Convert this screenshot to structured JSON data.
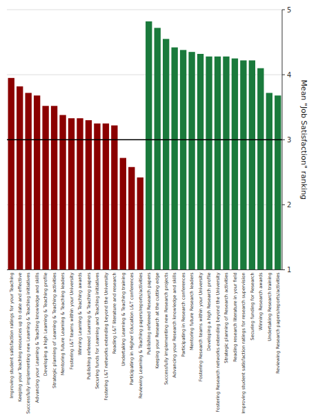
{
  "chart_data": {
    "type": "bar",
    "categories": [
      "Improving student satisfaction ratings for your Teaching",
      "Keeping your Teaching resources up to date and effective",
      "Successfully implementing new Learning & Teaching initiatives",
      "Advancing your Learning & Teaching knowledge and skills",
      "Developing a high Learning & Teaching profile",
      "Strategic planning of Learning & Teaching activities",
      "Mentoring future Learning & Teaching leaders",
      "Fostering L&T teams within your University",
      "Winning Learning & Teaching awards",
      "Publishing refereed Learning & Teaching papers",
      "Securing funds for Learning and Teaching initiatives",
      "Fostering L&T networks extending beyond the University",
      "Reading L&T literature and research",
      "Undertaking Learning & Teaching training",
      "Participating in Higher Education L&T conferences",
      "Reviewing Learning & Teaching papers/reports/activities",
      "Publishing refereed Research papers",
      "Keeping your Research at the cutting edge",
      "Successfully implementing new Research projects",
      "Advancing your Research knowledge and skills",
      "Participating in Research conferences",
      "Mentoring future Research leaders",
      "Fostering Research teams within your University",
      "Developing a high Research profile",
      "Fostering Research networks extending beyond the University",
      "Strategic planning of Research activities",
      "Reading research literature in your field",
      "Improving student satisfaction ratings for research supervision",
      "Securing funding for Research",
      "Winning Research awards",
      "Undertaking Research training",
      "Reviewing Research papers/reports/activities"
    ],
    "values": [
      3.95,
      3.82,
      3.72,
      3.68,
      3.52,
      3.52,
      3.38,
      3.33,
      3.33,
      3.3,
      3.25,
      3.25,
      3.22,
      2.72,
      2.58,
      2.42,
      4.82,
      4.72,
      4.55,
      4.42,
      4.38,
      4.35,
      4.32,
      4.28,
      4.28,
      4.28,
      4.25,
      4.22,
      4.22,
      4.1,
      3.72,
      3.68
    ],
    "colors": [
      "#8B0000",
      "#8B0000",
      "#8B0000",
      "#8B0000",
      "#8B0000",
      "#8B0000",
      "#8B0000",
      "#8B0000",
      "#8B0000",
      "#8B0000",
      "#8B0000",
      "#8B0000",
      "#8B0000",
      "#8B0000",
      "#8B0000",
      "#8B0000",
      "#1a7a3c",
      "#1a7a3c",
      "#1a7a3c",
      "#1a7a3c",
      "#1a7a3c",
      "#1a7a3c",
      "#1a7a3c",
      "#1a7a3c",
      "#1a7a3c",
      "#1a7a3c",
      "#1a7a3c",
      "#1a7a3c",
      "#1a7a3c",
      "#1a7a3c",
      "#1a7a3c",
      "#1a7a3c"
    ],
    "y_label": "Mean \"Job Satisfaction\" ranking",
    "ylim": [
      1.0,
      5.0
    ],
    "yticks": [
      1,
      2,
      3,
      4,
      5
    ],
    "reference_line": 3.0,
    "grid": true
  }
}
